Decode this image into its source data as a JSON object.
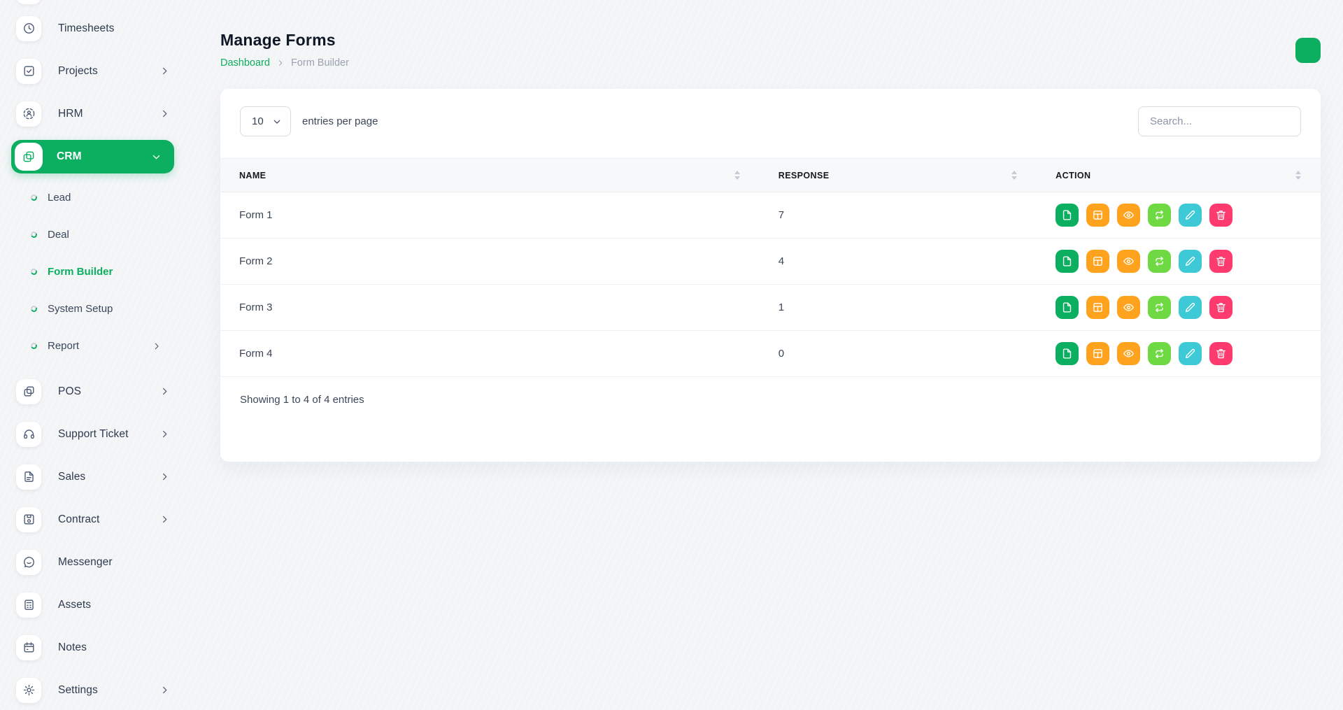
{
  "page": {
    "title": "Manage Forms",
    "breadcrumb": {
      "home": "Dashboard",
      "current": "Form Builder"
    }
  },
  "colors": {
    "primary_green": "#0caf60",
    "lime_green": "#6fd943",
    "orange": "#ffa21d",
    "cyan": "#3ec9d6",
    "red": "#ff3a6e"
  },
  "sidebar": {
    "items": [
      {
        "label": "Timesheets",
        "icon": "clock-icon",
        "chevron": false
      },
      {
        "label": "Projects",
        "icon": "check-square-icon",
        "chevron": true
      },
      {
        "label": "HRM",
        "icon": "people-circle-icon",
        "chevron": true
      },
      {
        "label": "CRM",
        "icon": "overlap-squares-icon",
        "chevron": "down",
        "active": true
      },
      {
        "label": "Lead"
      },
      {
        "label": "Deal"
      },
      {
        "label": "Form Builder",
        "active": true
      },
      {
        "label": "System Setup"
      },
      {
        "label": "Report",
        "chevron": true
      },
      {
        "label": "POS",
        "icon": "overlap-squares-icon",
        "chevron": true
      },
      {
        "label": "Support Ticket",
        "icon": "headset-icon",
        "chevron": true
      },
      {
        "label": "Sales",
        "icon": "file-text-icon",
        "chevron": true
      },
      {
        "label": "Contract",
        "icon": "floppy-icon",
        "chevron": true
      },
      {
        "label": "Messenger",
        "icon": "chat-icon",
        "chevron": false
      },
      {
        "label": "Assets",
        "icon": "calculator-icon",
        "chevron": false
      },
      {
        "label": "Notes",
        "icon": "calendar-icon",
        "chevron": false
      },
      {
        "label": "Settings",
        "icon": "gear-icon",
        "chevron": true
      }
    ]
  },
  "controls": {
    "per_page": "10",
    "per_page_label": "entries per page",
    "search_placeholder": "Search..."
  },
  "table": {
    "columns": [
      "NAME",
      "RESPONSE",
      "ACTION"
    ],
    "rows": [
      {
        "name": "Form 1",
        "response": "7"
      },
      {
        "name": "Form 2",
        "response": "4"
      },
      {
        "name": "Form 3",
        "response": "1"
      },
      {
        "name": "Form 4",
        "response": "0"
      }
    ],
    "footer": "Showing 1 to 4 of 4 entries"
  },
  "actions": [
    {
      "name": "duplicate-form",
      "icon": "file-icon",
      "color": "#0caf60"
    },
    {
      "name": "form-fields",
      "icon": "grid-icon",
      "color": "#ffa21d"
    },
    {
      "name": "view-form",
      "icon": "eye-icon",
      "color": "#ffa21d"
    },
    {
      "name": "convert-form",
      "icon": "swap-icon",
      "color": "#6fd943"
    },
    {
      "name": "edit-form",
      "icon": "pencil-icon",
      "color": "#3ec9d6"
    },
    {
      "name": "delete-form",
      "icon": "trash-icon",
      "color": "#ff3a6e"
    }
  ]
}
